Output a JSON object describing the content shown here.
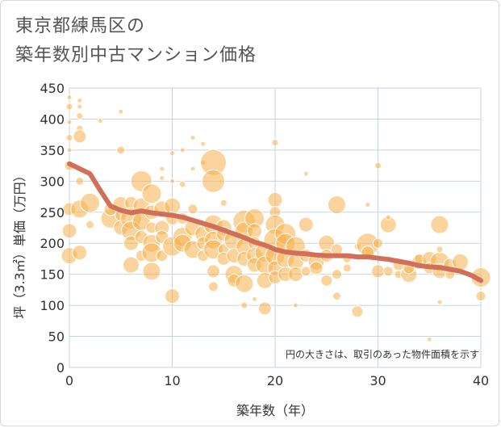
{
  "title_lines": [
    "東京都練馬区の",
    "築年数別中古マンション価格"
  ],
  "chart_data": {
    "type": "scatter",
    "xlabel": "築年数（年）",
    "ylabel": "坪（3.3㎡）単価（万円）",
    "xlim": [
      0,
      40
    ],
    "ylim": [
      0,
      450
    ],
    "xticks": [
      0,
      10,
      20,
      30,
      40
    ],
    "yticks": [
      0,
      50,
      100,
      150,
      200,
      250,
      300,
      350,
      400,
      450
    ],
    "grid": true,
    "note": "円の大きさは、取引のあった物件面積を示す",
    "colors": {
      "bubble": "#f5b04a",
      "trend": "#d0705a",
      "grid": "#c9d3de",
      "plot_border": "#d9d9d9"
    },
    "scatter": [
      [
        0,
        435,
        3
      ],
      [
        0,
        420,
        4
      ],
      [
        0,
        395,
        3
      ],
      [
        0,
        370,
        4
      ],
      [
        0,
        350,
        3
      ],
      [
        0,
        325,
        6
      ],
      [
        0,
        255,
        8
      ],
      [
        0,
        220,
        9
      ],
      [
        0,
        180,
        10
      ],
      [
        1,
        430,
        3
      ],
      [
        1,
        420,
        3
      ],
      [
        1,
        405,
        4
      ],
      [
        1,
        385,
        4
      ],
      [
        1,
        372,
        8
      ],
      [
        1,
        300,
        5
      ],
      [
        1,
        255,
        11
      ],
      [
        1,
        185,
        9
      ],
      [
        2,
        265,
        12
      ],
      [
        2,
        230,
        5
      ],
      [
        3,
        397,
        3
      ],
      [
        4,
        240,
        12
      ],
      [
        4,
        255,
        8
      ],
      [
        5,
        412,
        3
      ],
      [
        5,
        350,
        5
      ],
      [
        5,
        262,
        10
      ],
      [
        5,
        245,
        7
      ],
      [
        5,
        225,
        9
      ],
      [
        6,
        265,
        8
      ],
      [
        6,
        240,
        13
      ],
      [
        6,
        220,
        12
      ],
      [
        6,
        200,
        9
      ],
      [
        6,
        165,
        10
      ],
      [
        7,
        300,
        13
      ],
      [
        7,
        260,
        10
      ],
      [
        7,
        235,
        11
      ],
      [
        7,
        210,
        8
      ],
      [
        7,
        180,
        7
      ],
      [
        8,
        280,
        12
      ],
      [
        8,
        250,
        9
      ],
      [
        8,
        225,
        7
      ],
      [
        8,
        200,
        11
      ],
      [
        8,
        185,
        12
      ],
      [
        8,
        155,
        11
      ],
      [
        9,
        320,
        3
      ],
      [
        9,
        305,
        3
      ],
      [
        9,
        255,
        10
      ],
      [
        9,
        225,
        9
      ],
      [
        9,
        210,
        8
      ],
      [
        9,
        180,
        7
      ],
      [
        10,
        345,
        3
      ],
      [
        10,
        300,
        3
      ],
      [
        10,
        260,
        10
      ],
      [
        10,
        240,
        8
      ],
      [
        10,
        195,
        12
      ],
      [
        10,
        115,
        9
      ],
      [
        11,
        350,
        3
      ],
      [
        11,
        295,
        4
      ],
      [
        11,
        240,
        7
      ],
      [
        11,
        210,
        12
      ],
      [
        11,
        200,
        11
      ],
      [
        12,
        370,
        3
      ],
      [
        12,
        320,
        3
      ],
      [
        12,
        255,
        6
      ],
      [
        12,
        225,
        10
      ],
      [
        12,
        190,
        11
      ],
      [
        13,
        360,
        3
      ],
      [
        13,
        330,
        3
      ],
      [
        13,
        215,
        10
      ],
      [
        13,
        200,
        8
      ],
      [
        13,
        180,
        7
      ],
      [
        14,
        330,
        16
      ],
      [
        14,
        300,
        14
      ],
      [
        14,
        230,
        12
      ],
      [
        14,
        205,
        11
      ],
      [
        14,
        190,
        12
      ],
      [
        14,
        155,
        8
      ],
      [
        14,
        130,
        6
      ],
      [
        15,
        265,
        4
      ],
      [
        15,
        225,
        10
      ],
      [
        15,
        215,
        9
      ],
      [
        15,
        190,
        7
      ],
      [
        15,
        175,
        8
      ],
      [
        16,
        205,
        12
      ],
      [
        16,
        180,
        9
      ],
      [
        16,
        150,
        11
      ],
      [
        16,
        140,
        8
      ],
      [
        17,
        235,
        14
      ],
      [
        17,
        220,
        11
      ],
      [
        17,
        195,
        10
      ],
      [
        17,
        175,
        9
      ],
      [
        17,
        135,
        11
      ],
      [
        17,
        100,
        4
      ],
      [
        18,
        240,
        12
      ],
      [
        18,
        220,
        9
      ],
      [
        18,
        200,
        8
      ],
      [
        18,
        180,
        10
      ],
      [
        18,
        165,
        9
      ],
      [
        18,
        110,
        3
      ],
      [
        19,
        185,
        12
      ],
      [
        19,
        165,
        11
      ],
      [
        19,
        140,
        10
      ],
      [
        19,
        95,
        8
      ],
      [
        20,
        362,
        4
      ],
      [
        20,
        270,
        9
      ],
      [
        20,
        250,
        7
      ],
      [
        20,
        230,
        12
      ],
      [
        20,
        205,
        14
      ],
      [
        20,
        180,
        12
      ],
      [
        20,
        160,
        9
      ],
      [
        20,
        145,
        8
      ],
      [
        21,
        215,
        13
      ],
      [
        21,
        200,
        12
      ],
      [
        21,
        175,
        11
      ],
      [
        21,
        150,
        9
      ],
      [
        22,
        195,
        12
      ],
      [
        22,
        170,
        10
      ],
      [
        22,
        150,
        9
      ],
      [
        22,
        100,
        3
      ],
      [
        23,
        312,
        3
      ],
      [
        23,
        230,
        9
      ],
      [
        23,
        180,
        8
      ],
      [
        23,
        155,
        6
      ],
      [
        24,
        170,
        10
      ],
      [
        24,
        160,
        8
      ],
      [
        25,
        200,
        10
      ],
      [
        25,
        180,
        8
      ],
      [
        25,
        140,
        7
      ],
      [
        26,
        262,
        11
      ],
      [
        26,
        190,
        7
      ],
      [
        26,
        150,
        6
      ],
      [
        26,
        115,
        5
      ],
      [
        27,
        175,
        5
      ],
      [
        27,
        160,
        5
      ],
      [
        28,
        195,
        4
      ],
      [
        28,
        90,
        7
      ],
      [
        29,
        198,
        14
      ],
      [
        29,
        185,
        8
      ],
      [
        29,
        262,
        3
      ],
      [
        30,
        325,
        4
      ],
      [
        30,
        155,
        8
      ],
      [
        30,
        200,
        6
      ],
      [
        31,
        230,
        10
      ],
      [
        31,
        242,
        3
      ],
      [
        31,
        155,
        6
      ],
      [
        32,
        165,
        7
      ],
      [
        32,
        150,
        5
      ],
      [
        33,
        150,
        10
      ],
      [
        33,
        160,
        7
      ],
      [
        34,
        170,
        9
      ],
      [
        34,
        175,
        6
      ],
      [
        35,
        175,
        9
      ],
      [
        35,
        160,
        7
      ],
      [
        35,
        45,
        3
      ],
      [
        36,
        230,
        11
      ],
      [
        36,
        170,
        12
      ],
      [
        36,
        155,
        9
      ],
      [
        36,
        105,
        3
      ],
      [
        36,
        190,
        4
      ],
      [
        37,
        165,
        8
      ],
      [
        37,
        150,
        6
      ],
      [
        38,
        170,
        10
      ],
      [
        40,
        145,
        12
      ],
      [
        40,
        115,
        6
      ]
    ],
    "trend": {
      "x": [
        0,
        1,
        2,
        3,
        4,
        5,
        6,
        7,
        8,
        9,
        10,
        11,
        12,
        13,
        14,
        15,
        16,
        17,
        18,
        19,
        20,
        21,
        22,
        23,
        24,
        25,
        26,
        27,
        28,
        29,
        30,
        31,
        32,
        33,
        34,
        35,
        36,
        37,
        38,
        39,
        40
      ],
      "y": [
        328,
        320,
        312,
        285,
        260,
        253,
        249,
        252,
        249,
        247,
        245,
        242,
        237,
        232,
        227,
        221,
        215,
        209,
        202,
        197,
        190,
        186,
        184,
        183,
        181,
        180,
        180,
        180,
        178,
        178,
        176,
        174,
        171,
        168,
        164,
        162,
        161,
        158,
        155,
        149,
        140
      ]
    }
  }
}
